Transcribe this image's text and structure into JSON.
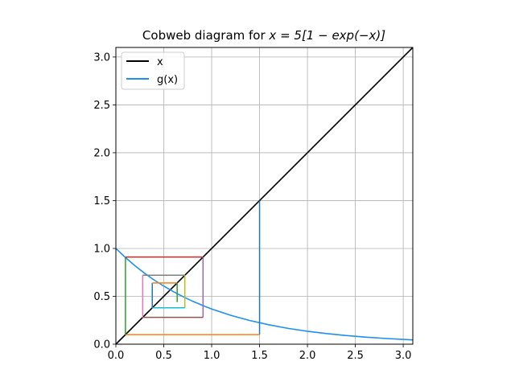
{
  "chart_data": {
    "type": "line",
    "title": "Cobweb diagram for x = 5[1 − exp(−x)]",
    "title_parts": {
      "lead": "Cobweb diagram for ",
      "math": "x = 5[1 − exp(−x)]"
    },
    "xlabel": "",
    "ylabel": "",
    "xlim": [
      0,
      3.1
    ],
    "ylim": [
      0,
      3.1
    ],
    "grid": true,
    "legend_placement": "top-left",
    "xticks": [
      "0.0",
      "0.5",
      "1.0",
      "1.5",
      "2.0",
      "2.5",
      "3.0"
    ],
    "yticks": [
      "0.0",
      "0.5",
      "1.0",
      "1.5",
      "2.0",
      "2.5",
      "3.0"
    ],
    "series": [
      {
        "name": "x",
        "color": "#000000",
        "x": [
          0,
          3.1
        ],
        "y": [
          0,
          3.1
        ]
      },
      {
        "name": "g(x)",
        "color": "#1f8fef",
        "x": [
          0,
          0.1,
          0.2,
          0.3,
          0.4,
          0.5,
          0.6,
          0.7,
          0.8,
          0.9,
          1.0,
          1.2,
          1.4,
          1.6,
          1.8,
          2.0,
          2.2,
          2.4,
          2.6,
          2.8,
          3.0,
          3.1
        ],
        "y": [
          1.0,
          0.905,
          0.819,
          0.741,
          0.67,
          0.607,
          0.549,
          0.497,
          0.449,
          0.407,
          0.368,
          0.301,
          0.247,
          0.202,
          0.165,
          0.135,
          0.111,
          0.091,
          0.074,
          0.061,
          0.05,
          0.045
        ]
      }
    ],
    "cobweb_segments": [
      {
        "color": "#1f77b4",
        "x": [
          1.5,
          1.5
        ],
        "y": [
          1.5,
          0.1
        ]
      },
      {
        "color": "#ff7f0e",
        "x": [
          1.5,
          0.1
        ],
        "y": [
          0.1,
          0.1
        ]
      },
      {
        "color": "#2ca02c",
        "x": [
          0.1,
          0.1
        ],
        "y": [
          0.1,
          0.91
        ]
      },
      {
        "color": "#d62728",
        "x": [
          0.1,
          0.91
        ],
        "y": [
          0.91,
          0.91
        ]
      },
      {
        "color": "#9467bd",
        "x": [
          0.91,
          0.91
        ],
        "y": [
          0.91,
          0.28
        ]
      },
      {
        "color": "#8c564b",
        "x": [
          0.91,
          0.28
        ],
        "y": [
          0.28,
          0.28
        ]
      },
      {
        "color": "#e377c2",
        "x": [
          0.28,
          0.28
        ],
        "y": [
          0.28,
          0.72
        ]
      },
      {
        "color": "#7f7f7f",
        "x": [
          0.28,
          0.72
        ],
        "y": [
          0.72,
          0.72
        ]
      },
      {
        "color": "#bcbd22",
        "x": [
          0.72,
          0.72
        ],
        "y": [
          0.72,
          0.38
        ]
      },
      {
        "color": "#17becf",
        "x": [
          0.72,
          0.38
        ],
        "y": [
          0.38,
          0.38
        ]
      },
      {
        "color": "#1f77b4",
        "x": [
          0.38,
          0.38
        ],
        "y": [
          0.38,
          0.64
        ]
      },
      {
        "color": "#ff7f0e",
        "x": [
          0.38,
          0.64
        ],
        "y": [
          0.64,
          0.64
        ]
      },
      {
        "color": "#2ca02c",
        "x": [
          0.64,
          0.64
        ],
        "y": [
          0.64,
          0.44
        ]
      }
    ]
  }
}
